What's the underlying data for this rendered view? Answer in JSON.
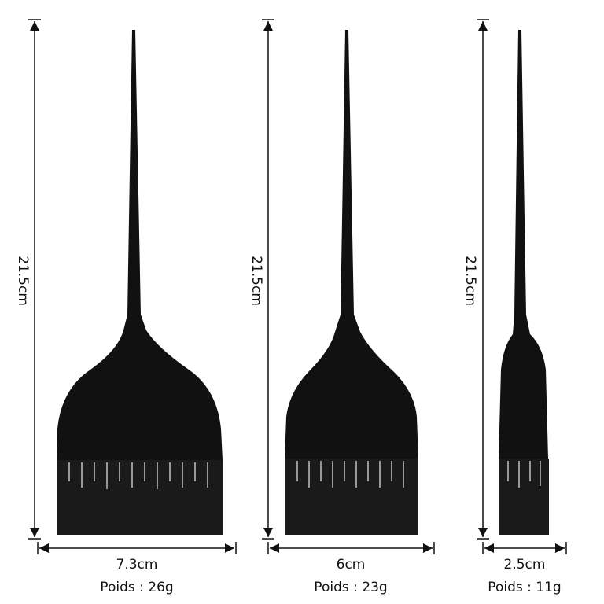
{
  "brushes": [
    {
      "height": "21.5cm",
      "width": "7.3cm",
      "weight": "Poids : 26g"
    },
    {
      "height": "21.5cm",
      "width": "6cm",
      "weight": "Poids : 23g"
    },
    {
      "height": "21.5cm",
      "width": "2.5cm",
      "weight": "Poids : 11g"
    }
  ]
}
